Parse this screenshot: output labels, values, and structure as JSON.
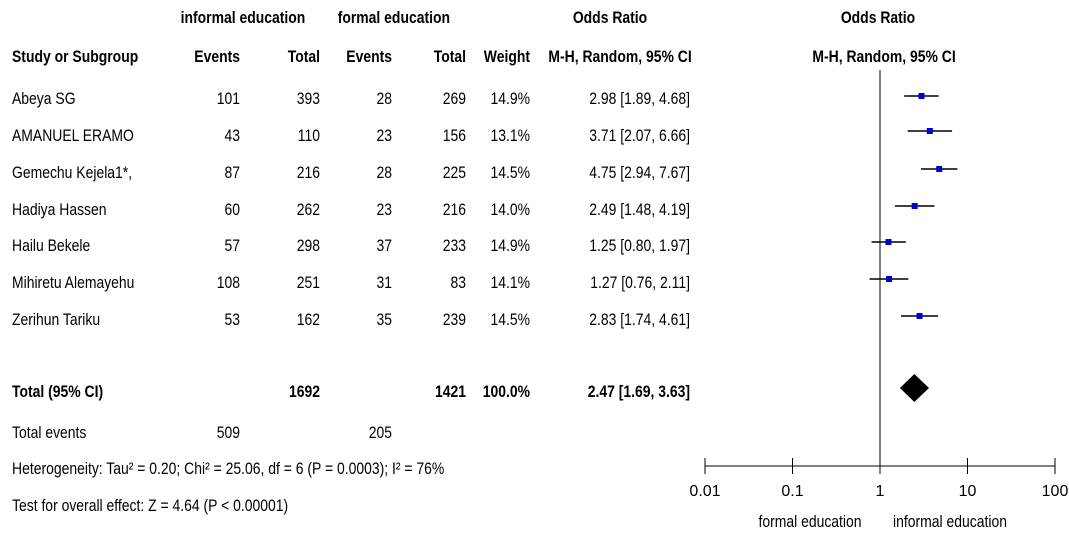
{
  "headers": {
    "group1": "informal education",
    "group2": "formal education",
    "or_left": "Odds Ratio",
    "or_right": "Odds Ratio",
    "study": "Study or Subgroup",
    "events1": "Events",
    "total1": "Total",
    "events2": "Events",
    "total2": "Total",
    "weight": "Weight",
    "method_left": "M-H, Random, 95% CI",
    "method_right": "M-H, Random, 95% CI"
  },
  "studies": [
    {
      "name": "Abeya SG",
      "e1": "101",
      "t1": "393",
      "e2": "28",
      "t2": "269",
      "weight": "14.9%",
      "ci": "2.98 [1.89, 4.68]"
    },
    {
      "name": "AMANUEL ERAMO",
      "e1": "43",
      "t1": "110",
      "e2": "23",
      "t2": "156",
      "weight": "13.1%",
      "ci": "3.71 [2.07, 6.66]"
    },
    {
      "name": "Gemechu Kejela1*,",
      "e1": "87",
      "t1": "216",
      "e2": "28",
      "t2": "225",
      "weight": "14.5%",
      "ci": "4.75 [2.94, 7.67]"
    },
    {
      "name": "Hadiya Hassen",
      "e1": "60",
      "t1": "262",
      "e2": "23",
      "t2": "216",
      "weight": "14.0%",
      "ci": "2.49 [1.48, 4.19]"
    },
    {
      "name": "Hailu Bekele",
      "e1": "57",
      "t1": "298",
      "e2": "37",
      "t2": "233",
      "weight": "14.9%",
      "ci": "1.25 [0.80, 1.97]"
    },
    {
      "name": "Mihiretu Alemayehu",
      "e1": "108",
      "t1": "251",
      "e2": "31",
      "t2": "83",
      "weight": "14.1%",
      "ci": "1.27 [0.76, 2.11]"
    },
    {
      "name": "Zerihun Tariku",
      "e1": "53",
      "t1": "162",
      "e2": "35",
      "t2": "239",
      "weight": "14.5%",
      "ci": "2.83 [1.74, 4.61]"
    }
  ],
  "total": {
    "label": "Total (95% CI)",
    "t1": "1692",
    "t2": "1421",
    "weight": "100.0%",
    "ci": "2.47 [1.69, 3.63]"
  },
  "total_events": {
    "label": "Total events",
    "e1": "509",
    "e2": "205"
  },
  "heterogeneity": "Heterogeneity: Tau² = 0.20; Chi² = 25.06, df = 6 (P = 0.0003); I² = 76%",
  "overall_effect": "Test for overall effect: Z = 4.64 (P < 0.00001)",
  "axis_labels": {
    "left": "formal education",
    "right": "informal education"
  },
  "chart_data": {
    "type": "forest",
    "x_scale": "log",
    "xlim": [
      0.01,
      100
    ],
    "ticks": [
      0.01,
      0.1,
      1,
      10,
      100
    ],
    "tick_labels": [
      "0.01",
      "0.1",
      "1",
      "10",
      "100"
    ],
    "reference_line": 1,
    "series": [
      {
        "name": "Abeya SG",
        "or": 2.98,
        "lo": 1.89,
        "hi": 4.68
      },
      {
        "name": "AMANUEL ERAMO",
        "or": 3.71,
        "lo": 2.07,
        "hi": 6.66
      },
      {
        "name": "Gemechu Kejela1*,",
        "or": 4.75,
        "lo": 2.94,
        "hi": 7.67
      },
      {
        "name": "Hadiya Hassen",
        "or": 2.49,
        "lo": 1.48,
        "hi": 4.19
      },
      {
        "name": "Hailu Bekele",
        "or": 1.25,
        "lo": 0.8,
        "hi": 1.97
      },
      {
        "name": "Mihiretu Alemayehu",
        "or": 1.27,
        "lo": 0.76,
        "hi": 2.11
      },
      {
        "name": "Zerihun Tariku",
        "or": 2.83,
        "lo": 1.74,
        "hi": 4.61
      }
    ],
    "pooled": {
      "or": 2.47,
      "lo": 1.69,
      "hi": 3.63
    },
    "marker_color": "#0000cc"
  }
}
